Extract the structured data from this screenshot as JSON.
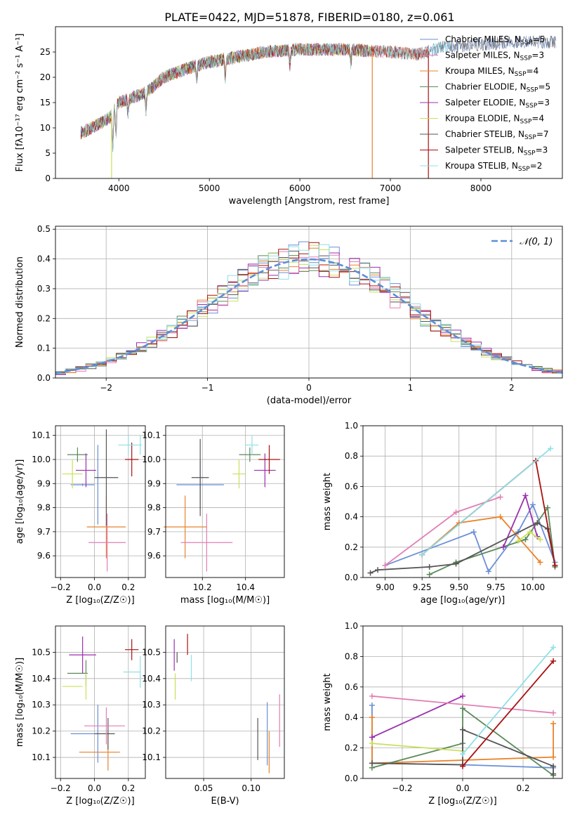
{
  "figure_title": "PLATE=0422, MJD=51878, FIBERID=0180, z=0.061",
  "colors": [
    "#6b8fd6",
    "#e8832a",
    "#5b8a5b",
    "#9b2fae",
    "#c9e05a",
    "#555555",
    "#e27fb4",
    "#aa1111",
    "#8fe0e6"
  ],
  "chart_data": [
    {
      "id": "spectrum",
      "type": "line",
      "xlabel": "wavelength [Angstrom, rest frame]",
      "ylabel": "Flux [fλ10⁻¹⁷ erg cm⁻² s⁻¹ A⁻¹]",
      "xlim": [
        3300,
        8900
      ],
      "ylim": [
        0,
        30
      ],
      "xticks": [
        4000,
        5000,
        6000,
        7000,
        8000
      ],
      "yticks": [
        0,
        5,
        10,
        15,
        20,
        25
      ],
      "grid": false,
      "legend_placement": "right",
      "continuum": {
        "x": [
          3580,
          3700,
          3900,
          4000,
          4300,
          4500,
          4800,
          5000,
          5300,
          5600,
          6000,
          6500,
          7000,
          7300,
          7600,
          8000,
          8400,
          8830
        ],
        "y": [
          9,
          10,
          12,
          15,
          17,
          20,
          22,
          23,
          24,
          25,
          25.5,
          25.5,
          25,
          24.5,
          26,
          26.5,
          27,
          27
        ]
      },
      "series": [
        {
          "name": "Chabrier MILES, N_SSP=5",
          "legend_main": "Chabrier MILES, N",
          "legend_sub": "SSP",
          "legend_tail": "=5",
          "color": "#6b8fd6",
          "x_end": 8830
        },
        {
          "name": "Salpeter MILES, N_SSP=3",
          "legend_main": "Salpeter MILES, N",
          "legend_sub": "SSP",
          "legend_tail": "=3",
          "color": "#e27fb4",
          "x_end": 7420
        },
        {
          "name": "Kroupa MILES, N_SSP=4",
          "legend_main": "Kroupa MILES, N",
          "legend_sub": "SSP",
          "legend_tail": "=4",
          "color": "#e8832a",
          "x_end": 7420
        },
        {
          "name": "Chabrier ELODIE, N_SSP=5",
          "legend_main": "Chabrier ELODIE, N",
          "legend_sub": "SSP",
          "legend_tail": "=5",
          "color": "#5b8a5b",
          "x_end": 6800
        },
        {
          "name": "Salpeter ELODIE, N_SSP=3",
          "legend_main": "Salpeter ELODIE, N",
          "legend_sub": "SSP",
          "legend_tail": "=3",
          "color": "#9b2fae",
          "x_end": 6800
        },
        {
          "name": "Kroupa ELODIE, N_SSP=4",
          "legend_main": "Kroupa ELODIE, N",
          "legend_sub": "SSP",
          "legend_tail": "=4",
          "color": "#c9e05a",
          "x_end": 6800
        },
        {
          "name": "Chabrier STELIB, N_SSP=7",
          "legend_main": "Chabrier STELIB, N",
          "legend_sub": "SSP",
          "legend_tail": "=7",
          "color": "#555555",
          "x_end": 8830
        },
        {
          "name": "Salpeter STELIB, N_SSP=3",
          "legend_main": "Salpeter STELIB, N",
          "legend_sub": "SSP",
          "legend_tail": "=3",
          "color": "#aa1111",
          "x_end": 7420
        },
        {
          "name": "Kroupa STELIB, N_SSP=2",
          "legend_main": "Kroupa STELIB, N",
          "legend_sub": "SSP",
          "legend_tail": "=2",
          "color": "#8fe0e6",
          "x_end": 7660
        }
      ]
    },
    {
      "id": "residuals",
      "type": "histogram",
      "xlabel": "(data-model)/error",
      "ylabel": "Normed distribution",
      "xlim": [
        -2.5,
        2.5
      ],
      "ylim": [
        0,
        0.51
      ],
      "xticks": [
        -2,
        -1,
        0,
        1,
        2
      ],
      "yticks": [
        0.0,
        0.1,
        0.2,
        0.3,
        0.4,
        0.5
      ],
      "grid": true,
      "legend_placement": "top-right",
      "gaussian_label": "𝒩(0, 1)",
      "bin_width": 0.1
    },
    {
      "id": "age_vs_Z",
      "type": "scatter",
      "xlabel": "Z [log₁₀(Z/Z☉)]",
      "ylabel": "age  [log₁₀(age/yr)]",
      "xlim": [
        -0.23,
        0.3
      ],
      "ylim": [
        9.51,
        10.14
      ],
      "xticks": [
        -0.2,
        0.0,
        0.2
      ],
      "yticks": [
        9.6,
        9.7,
        9.8,
        9.9,
        10.0,
        10.1
      ],
      "grid": true,
      "points": [
        {
          "x": -0.07,
          "y": 9.895,
          "xerr": 0.07,
          "yerr": 0.005,
          "color": "#6b8fd6"
        },
        {
          "x": 0.02,
          "y": 9.895,
          "xerr": 0.0,
          "yerr": 0.165,
          "color": "#6b8fd6"
        },
        {
          "x": 0.07,
          "y": 9.72,
          "xerr": 0.115,
          "yerr": 0.13,
          "color": "#e8832a"
        },
        {
          "x": -0.1,
          "y": 10.02,
          "xerr": 0.06,
          "yerr": 0.03,
          "color": "#5b8a5b"
        },
        {
          "x": -0.05,
          "y": 9.955,
          "xerr": 0.06,
          "yerr": 0.07,
          "color": "#9b2fae"
        },
        {
          "x": -0.13,
          "y": 9.94,
          "xerr": 0.06,
          "yerr": 0.06,
          "color": "#c9e05a"
        },
        {
          "x": 0.07,
          "y": 9.925,
          "xerr": 0.07,
          "yerr": 0.2,
          "color": "#555555"
        },
        {
          "x": 0.075,
          "y": 9.655,
          "xerr": 0.11,
          "yerr": 0.12,
          "color": "#e27fb4"
        },
        {
          "x": 0.22,
          "y": 10.0,
          "xerr": 0.04,
          "yerr": 0.07,
          "color": "#aa1111"
        },
        {
          "x": 0.2,
          "y": 10.06,
          "xerr": 0.06,
          "yerr": 0.04,
          "color": "#8fe0e6"
        },
        {
          "x": 0.27,
          "y": 10.06,
          "xerr": 0.01,
          "yerr": 0.04,
          "color": "#8fe0e6"
        }
      ]
    },
    {
      "id": "age_vs_mass",
      "type": "scatter",
      "xlabel": "mass [log₁₀(M/M☉)]",
      "ylabel": "",
      "xlim": [
        10.03,
        10.58
      ],
      "ylim": [
        9.51,
        10.14
      ],
      "xticks": [
        10.2,
        10.4
      ],
      "yticks": [
        9.6,
        9.7,
        9.8,
        9.9,
        10.0,
        10.1
      ],
      "grid": true,
      "points": [
        {
          "x": 10.19,
          "y": 9.895,
          "xerr": 0.11,
          "yerr": 0.1,
          "color": "#6b8fd6"
        },
        {
          "x": 10.12,
          "y": 9.72,
          "xerr": 0.1,
          "yerr": 0.13,
          "color": "#e8832a"
        },
        {
          "x": 10.42,
          "y": 10.02,
          "xerr": 0.05,
          "yerr": 0.03,
          "color": "#5b8a5b"
        },
        {
          "x": 10.49,
          "y": 9.955,
          "xerr": 0.05,
          "yerr": 0.07,
          "color": "#9b2fae"
        },
        {
          "x": 10.37,
          "y": 9.94,
          "xerr": 0.03,
          "yerr": 0.06,
          "color": "#c9e05a"
        },
        {
          "x": 10.19,
          "y": 9.925,
          "xerr": 0.04,
          "yerr": 0.16,
          "color": "#555555"
        },
        {
          "x": 10.22,
          "y": 9.655,
          "xerr": 0.12,
          "yerr": 0.12,
          "color": "#e27fb4"
        },
        {
          "x": 10.51,
          "y": 10.0,
          "xerr": 0.05,
          "yerr": 0.06,
          "color": "#aa1111"
        },
        {
          "x": 10.43,
          "y": 10.06,
          "xerr": 0.03,
          "yerr": 0.04,
          "color": "#8fe0e6"
        }
      ]
    },
    {
      "id": "weight_vs_age",
      "type": "line",
      "xlabel": "age  [log₁₀(age/yr)]",
      "ylabel": "mass weight",
      "xlim": [
        8.85,
        10.2
      ],
      "ylim": [
        0,
        1.0
      ],
      "xticks": [
        9.0,
        9.25,
        9.5,
        9.75,
        10.0
      ],
      "yticks": [
        0.0,
        0.2,
        0.4,
        0.6,
        0.8,
        1.0
      ],
      "grid": true,
      "series": [
        {
          "color": "#6b8fd6",
          "x": [
            9.0,
            9.6,
            9.7,
            9.9,
            10.0,
            10.15
          ],
          "y": [
            0.08,
            0.3,
            0.04,
            0.3,
            0.48,
            0.1
          ]
        },
        {
          "color": "#e8832a",
          "x": [
            9.25,
            9.5,
            9.78,
            10.05
          ],
          "y": [
            0.15,
            0.36,
            0.4,
            0.1
          ]
        },
        {
          "color": "#5b8a5b",
          "x": [
            9.3,
            9.48,
            9.95,
            10.1,
            10.15
          ],
          "y": [
            0.02,
            0.1,
            0.25,
            0.46,
            0.07
          ]
        },
        {
          "color": "#9b2fae",
          "x": [
            9.8,
            9.95,
            10.03
          ],
          "y": [
            0.2,
            0.54,
            0.27
          ]
        },
        {
          "color": "#c9e05a",
          "x": [
            9.9,
            9.98,
            10.05
          ],
          "y": [
            0.24,
            0.3,
            0.25
          ]
        },
        {
          "color": "#555555",
          "x": [
            8.9,
            8.95,
            9.3,
            9.48,
            10.03,
            10.1,
            10.15
          ],
          "y": [
            0.03,
            0.05,
            0.07,
            0.09,
            0.36,
            0.32,
            0.08
          ]
        },
        {
          "color": "#e27fb4",
          "x": [
            9.0,
            9.48,
            9.78
          ],
          "y": [
            0.08,
            0.43,
            0.53
          ]
        },
        {
          "color": "#aa1111",
          "x": [
            9.25,
            10.02,
            10.15
          ],
          "y": [
            0.15,
            0.77,
            0.08
          ]
        },
        {
          "color": "#8fe0e6",
          "x": [
            9.25,
            10.12
          ],
          "y": [
            0.15,
            0.85
          ]
        }
      ]
    },
    {
      "id": "mass_vs_Z",
      "type": "scatter",
      "xlabel": "Z [log₁₀(Z/Z☉)]",
      "ylabel": "mass [log₁₀(M/M☉)]",
      "xlim": [
        -0.23,
        0.3
      ],
      "ylim": [
        10.02,
        10.6
      ],
      "xticks": [
        -0.2,
        0.0,
        0.2
      ],
      "yticks": [
        10.1,
        10.2,
        10.3,
        10.4,
        10.5
      ],
      "grid": true,
      "points": [
        {
          "x": -0.07,
          "y": 10.19,
          "xerr": 0.07,
          "yerr": 0.0,
          "color": "#6b8fd6"
        },
        {
          "x": 0.02,
          "y": 10.19,
          "xerr": 0.0,
          "yerr": 0.11,
          "color": "#6b8fd6"
        },
        {
          "x": 0.03,
          "y": 10.12,
          "xerr": 0.12,
          "yerr": 0.0,
          "color": "#e8832a"
        },
        {
          "x": 0.08,
          "y": 10.12,
          "xerr": 0.0,
          "yerr": 0.07,
          "color": "#e8832a"
        },
        {
          "x": -0.1,
          "y": 10.42,
          "xerr": 0.06,
          "yerr": 0.0,
          "color": "#5b8a5b"
        },
        {
          "x": -0.05,
          "y": 10.42,
          "xerr": 0.0,
          "yerr": 0.05,
          "color": "#5b8a5b"
        },
        {
          "x": -0.07,
          "y": 10.49,
          "xerr": 0.08,
          "yerr": 0.07,
          "color": "#9b2fae"
        },
        {
          "x": -0.13,
          "y": 10.37,
          "xerr": 0.06,
          "yerr": 0.0,
          "color": "#c9e05a"
        },
        {
          "x": -0.05,
          "y": 10.37,
          "xerr": 0.0,
          "yerr": 0.05,
          "color": "#c9e05a"
        },
        {
          "x": 0.06,
          "y": 10.19,
          "xerr": 0.06,
          "yerr": 0.0,
          "color": "#555555"
        },
        {
          "x": 0.08,
          "y": 10.19,
          "xerr": 0.0,
          "yerr": 0.06,
          "color": "#555555"
        },
        {
          "x": 0.06,
          "y": 10.22,
          "xerr": 0.12,
          "yerr": 0.0,
          "color": "#e27fb4"
        },
        {
          "x": 0.07,
          "y": 10.22,
          "xerr": 0.0,
          "yerr": 0.07,
          "color": "#e27fb4"
        },
        {
          "x": 0.22,
          "y": 10.51,
          "xerr": 0.04,
          "yerr": 0.04,
          "color": "#aa1111"
        },
        {
          "x": 0.22,
          "y": 10.425,
          "xerr": 0.05,
          "yerr": 0.0,
          "color": "#8fe0e6"
        },
        {
          "x": 0.27,
          "y": 10.425,
          "xerr": 0.0,
          "yerr": 0.06,
          "color": "#8fe0e6"
        }
      ]
    },
    {
      "id": "mass_vs_ebv",
      "type": "scatter",
      "xlabel": "E(B-V)",
      "ylabel": "",
      "xlim": [
        0.01,
        0.135
      ],
      "ylim": [
        10.02,
        10.6
      ],
      "xticks": [
        0.05,
        0.1
      ],
      "yticks": [
        10.1,
        10.2,
        10.3,
        10.4,
        10.5
      ],
      "grid": true,
      "points": [
        {
          "x": 0.117,
          "y": 10.19,
          "xerr": 0.0,
          "yerr": 0.12,
          "color": "#6b8fd6"
        },
        {
          "x": 0.119,
          "y": 10.12,
          "xerr": 0.0,
          "yerr": 0.08,
          "color": "#e8832a"
        },
        {
          "x": 0.019,
          "y": 10.49,
          "xerr": 0.0,
          "yerr": 0.06,
          "color": "#9b2fae"
        },
        {
          "x": 0.02,
          "y": 10.37,
          "xerr": 0.0,
          "yerr": 0.05,
          "color": "#c9e05a"
        },
        {
          "x": 0.107,
          "y": 10.17,
          "xerr": 0.0,
          "yerr": 0.08,
          "color": "#555555"
        },
        {
          "x": 0.022,
          "y": 10.48,
          "xerr": 0.0,
          "yerr": 0.02,
          "color": "#555555"
        },
        {
          "x": 0.13,
          "y": 10.24,
          "xerr": 0.0,
          "yerr": 0.1,
          "color": "#e27fb4"
        },
        {
          "x": 0.033,
          "y": 10.53,
          "xerr": 0.0,
          "yerr": 0.04,
          "color": "#aa1111"
        },
        {
          "x": 0.037,
          "y": 10.44,
          "xerr": 0.0,
          "yerr": 0.05,
          "color": "#8fe0e6"
        }
      ]
    },
    {
      "id": "weight_vs_Z",
      "type": "line",
      "xlabel": "Z [log₁₀(Z/Z☉)]",
      "ylabel": "mass weight",
      "xlim": [
        -0.33,
        0.33
      ],
      "ylim": [
        0,
        1.0
      ],
      "xticks": [
        -0.2,
        0.0,
        0.2
      ],
      "yticks": [
        0.0,
        0.2,
        0.4,
        0.6,
        0.8,
        1.0
      ],
      "grid": true,
      "series": [
        {
          "color": "#6b8fd6",
          "x": [
            -0.3,
            -0.3,
            0.0,
            0.3
          ],
          "y": [
            0.48,
            0.1,
            0.09,
            0.07
          ]
        },
        {
          "color": "#e8832a",
          "x": [
            -0.3,
            -0.3,
            0.0,
            0.3,
            0.3
          ],
          "y": [
            0.4,
            0.1,
            0.12,
            0.14,
            0.36
          ]
        },
        {
          "color": "#5b8a5b",
          "x": [
            -0.3,
            0.0,
            0.0,
            0.3
          ],
          "y": [
            0.07,
            0.23,
            0.46,
            0.02
          ]
        },
        {
          "color": "#9b2fae",
          "x": [
            -0.3,
            0.0
          ],
          "y": [
            0.27,
            0.54
          ]
        },
        {
          "color": "#c9e05a",
          "x": [
            -0.3,
            0.0
          ],
          "y": [
            0.23,
            0.18
          ]
        },
        {
          "color": "#555555",
          "x": [
            -0.3,
            0.0,
            0.0,
            0.3,
            0.3
          ],
          "y": [
            0.1,
            0.09,
            0.32,
            0.08,
            0.03
          ]
        },
        {
          "color": "#e27fb4",
          "x": [
            -0.3,
            0.3
          ],
          "y": [
            0.54,
            0.43
          ]
        },
        {
          "color": "#aa1111",
          "x": [
            0.0,
            0.3
          ],
          "y": [
            0.08,
            0.77
          ]
        },
        {
          "color": "#8fe0e6",
          "x": [
            0.0,
            0.3
          ],
          "y": [
            0.16,
            0.86
          ]
        }
      ]
    }
  ]
}
